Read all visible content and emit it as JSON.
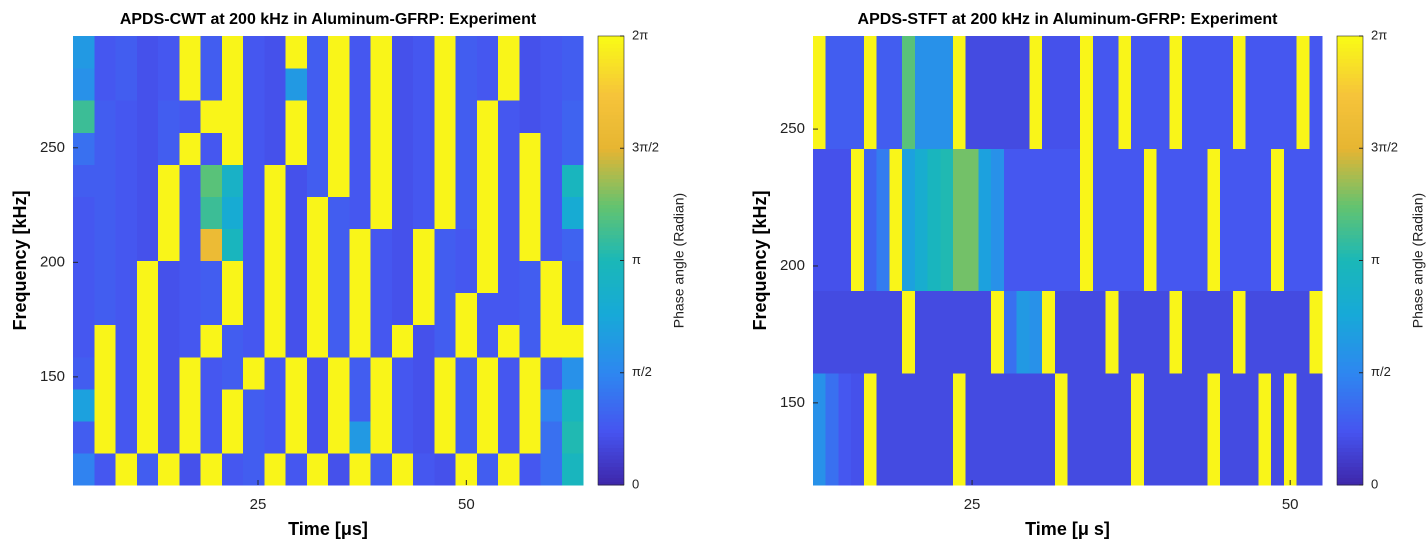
{
  "chart_data": [
    {
      "type": "heatmap",
      "title": "APDS-CWT at 200 kHz in Aluminum-GFRP: Experiment",
      "xlabel": "Time [μs]",
      "ylabel": "Frequency [kHz]",
      "xlim": [
        2.8,
        64.0
      ],
      "ylim": [
        102.8,
        298.8
      ],
      "xticks": [
        25,
        50
      ],
      "yticks": [
        150,
        200,
        250
      ],
      "xbins": [
        2.8,
        5.35,
        7.9,
        10.45,
        13,
        15.55,
        18.1,
        20.65,
        23.2,
        25.75,
        28.3,
        30.85,
        33.4,
        35.95,
        38.5,
        41.05,
        43.6,
        46.15,
        48.7,
        51.25,
        53.8,
        56.35,
        58.9,
        61.45,
        64.0
      ],
      "ybins": [
        102.8,
        116.8,
        130.8,
        144.8,
        158.8,
        172.8,
        186.8,
        200.8,
        214.8,
        228.8,
        242.8,
        256.8,
        270.8,
        284.8,
        298.8
      ],
      "z": [
        [
          1.5,
          0.8,
          6.2,
          0.9,
          6.2,
          0.7,
          6.2,
          0.8,
          0.9,
          6.2,
          0.8,
          6.2,
          0.7,
          6.2,
          0.9,
          6.2,
          0.8,
          0.7,
          6.2,
          0.9,
          6.2,
          0.8,
          1.2,
          3.0
        ],
        [
          0.9,
          6.2,
          0.8,
          6.2,
          0.7,
          6.2,
          0.8,
          6.2,
          0.9,
          0.8,
          6.2,
          0.7,
          6.2,
          2.0,
          6.2,
          0.8,
          0.7,
          6.2,
          0.9,
          6.2,
          0.8,
          6.2,
          1.2,
          3.2
        ],
        [
          2.2,
          6.2,
          0.8,
          6.2,
          0.7,
          6.2,
          0.8,
          6.2,
          0.9,
          0.8,
          6.2,
          0.7,
          6.2,
          0.9,
          6.2,
          0.8,
          0.7,
          6.2,
          0.9,
          6.2,
          0.8,
          6.2,
          1.5,
          3.0
        ],
        [
          0.9,
          6.2,
          0.8,
          6.2,
          0.7,
          6.2,
          0.8,
          0.9,
          6.2,
          0.8,
          6.2,
          0.7,
          6.2,
          0.9,
          6.2,
          0.8,
          0.7,
          6.2,
          0.9,
          6.2,
          0.8,
          6.2,
          0.9,
          1.8
        ],
        [
          0.8,
          6.2,
          0.8,
          6.2,
          0.7,
          0.8,
          6.2,
          0.9,
          0.8,
          6.2,
          0.7,
          6.2,
          0.9,
          6.2,
          0.8,
          6.2,
          0.7,
          0.9,
          6.2,
          0.8,
          6.2,
          0.9,
          6.2,
          6.2
        ],
        [
          0.8,
          0.9,
          0.8,
          6.2,
          0.7,
          0.8,
          0.9,
          6.2,
          0.8,
          6.2,
          0.7,
          6.2,
          0.9,
          6.2,
          0.8,
          0.7,
          6.2,
          0.9,
          6.2,
          0.8,
          0.8,
          0.9,
          6.2,
          0.9
        ],
        [
          0.8,
          0.9,
          0.8,
          6.2,
          0.7,
          0.8,
          0.9,
          6.2,
          0.8,
          6.2,
          0.7,
          6.2,
          0.9,
          6.2,
          0.8,
          0.7,
          6.2,
          0.9,
          0.8,
          6.2,
          0.8,
          0.9,
          6.2,
          0.9
        ],
        [
          0.8,
          0.9,
          0.8,
          0.7,
          6.2,
          0.8,
          5.0,
          3.0,
          0.8,
          6.2,
          0.7,
          6.2,
          0.9,
          6.2,
          0.8,
          0.7,
          6.2,
          0.9,
          0.8,
          6.2,
          0.8,
          6.2,
          0.8,
          1.0
        ],
        [
          0.8,
          0.9,
          0.8,
          0.7,
          6.2,
          0.8,
          3.5,
          2.5,
          0.8,
          6.2,
          0.7,
          6.2,
          0.9,
          0.8,
          6.2,
          0.7,
          0.8,
          6.2,
          0.9,
          6.2,
          0.8,
          6.2,
          0.8,
          2.5
        ],
        [
          0.9,
          0.9,
          0.8,
          0.7,
          6.2,
          0.8,
          3.8,
          2.8,
          0.8,
          6.2,
          0.7,
          0.9,
          6.2,
          0.8,
          6.2,
          0.7,
          0.8,
          6.2,
          0.9,
          6.2,
          0.8,
          6.2,
          0.8,
          3.0
        ],
        [
          1.2,
          0.9,
          0.8,
          0.7,
          0.9,
          6.2,
          0.8,
          6.2,
          0.8,
          0.7,
          6.2,
          0.9,
          6.2,
          0.8,
          6.2,
          0.7,
          0.8,
          6.2,
          0.9,
          6.2,
          0.8,
          6.2,
          0.8,
          1.0
        ],
        [
          3.5,
          0.9,
          0.8,
          0.7,
          0.9,
          0.8,
          6.2,
          6.2,
          0.8,
          0.7,
          6.2,
          0.9,
          6.2,
          0.8,
          6.2,
          0.7,
          0.8,
          6.2,
          0.9,
          6.2,
          0.8,
          0.7,
          0.8,
          1.0
        ],
        [
          1.8,
          0.8,
          0.9,
          0.7,
          0.8,
          6.2,
          0.9,
          6.2,
          0.8,
          0.7,
          2.0,
          0.9,
          6.2,
          0.8,
          6.2,
          0.7,
          0.8,
          6.2,
          0.9,
          0.8,
          6.2,
          0.7,
          0.8,
          0.9
        ],
        [
          2.0,
          0.8,
          0.9,
          0.7,
          0.8,
          6.2,
          0.9,
          6.2,
          0.8,
          0.7,
          6.2,
          0.9,
          6.2,
          0.8,
          6.2,
          0.7,
          0.8,
          6.2,
          0.9,
          0.8,
          6.2,
          0.7,
          0.8,
          0.9
        ]
      ],
      "colormap": "parula",
      "clim": [
        0,
        6.2832
      ],
      "colorbar_label": "Phase angle (Radian)",
      "colorbar_ticks": [
        0,
        {
          "value": 1.5708,
          "label": "π/2"
        },
        {
          "value": 3.1416,
          "label": "π"
        },
        {
          "value": 4.7124,
          "label": "3π/2"
        },
        {
          "value": 6.2832,
          "label": "2π"
        }
      ]
    },
    {
      "type": "heatmap",
      "title": "APDS-STFT at 200 kHz in Aluminum-GFRP: Experiment",
      "xlabel": "Time [μ s]",
      "ylabel": "Frequency [kHz]",
      "xlim": [
        12.5,
        52.5
      ],
      "ylim": [
        120,
        284
      ],
      "xticks": [
        25,
        50
      ],
      "yticks": [
        150,
        200,
        250
      ],
      "xbins": [
        12.5,
        13.5,
        14.5,
        15.5,
        16.5,
        17.5,
        18.5,
        19.5,
        20.5,
        21.5,
        22.5,
        23.5,
        24.5,
        25.5,
        26.5,
        27.5,
        28.5,
        29.5,
        30.5,
        31.5,
        32.5,
        33.5,
        34.5,
        35.5,
        36.5,
        37.5,
        38.5,
        39.5,
        40.5,
        41.5,
        42.5,
        43.5,
        44.5,
        45.5,
        46.5,
        47.5,
        48.5,
        49.5,
        50.5,
        51.5,
        52.5
      ],
      "ybins": [
        120,
        161,
        191,
        243,
        284
      ],
      "z": [
        [
          1.8,
          1.2,
          0.8,
          0.7,
          6.2,
          0.6,
          0.6,
          0.6,
          0.6,
          0.6,
          0.6,
          6.2,
          0.6,
          0.6,
          0.6,
          0.6,
          0.6,
          0.6,
          0.6,
          6.2,
          0.6,
          0.6,
          0.6,
          0.6,
          0.6,
          6.2,
          0.6,
          0.6,
          0.6,
          0.6,
          0.6,
          6.2,
          0.6,
          0.6,
          0.6,
          6.2,
          0.6,
          6.2,
          0.6,
          0.6
        ],
        [
          0.6,
          0.6,
          0.6,
          0.6,
          0.6,
          0.6,
          0.6,
          6.2,
          0.6,
          0.6,
          0.6,
          0.6,
          0.6,
          0.6,
          6.2,
          1.2,
          2.0,
          1.8,
          6.2,
          0.6,
          0.6,
          0.6,
          0.6,
          6.2,
          0.6,
          0.6,
          0.6,
          0.6,
          6.2,
          0.6,
          0.6,
          0.6,
          0.6,
          6.2,
          0.6,
          0.6,
          0.6,
          0.6,
          0.6,
          6.2
        ],
        [
          0.7,
          0.7,
          0.7,
          6.2,
          1.0,
          1.4,
          6.2,
          2.2,
          2.6,
          3.0,
          3.2,
          4.0,
          4.0,
          2.2,
          1.8,
          0.8,
          0.8,
          0.8,
          0.8,
          0.8,
          0.8,
          6.2,
          0.8,
          0.8,
          0.8,
          0.8,
          6.2,
          0.8,
          0.8,
          0.8,
          0.8,
          6.2,
          0.8,
          0.8,
          0.8,
          0.8,
          6.2,
          0.8,
          0.8,
          0.8
        ],
        [
          6.2,
          0.9,
          0.9,
          0.9,
          6.2,
          0.9,
          0.9,
          3.8,
          1.8,
          1.8,
          1.8,
          6.2,
          0.6,
          0.6,
          0.6,
          0.6,
          0.6,
          6.2,
          0.7,
          0.7,
          0.7,
          6.2,
          0.8,
          0.8,
          6.2,
          0.8,
          0.8,
          0.8,
          6.2,
          0.8,
          0.8,
          0.8,
          0.8,
          6.2,
          0.8,
          0.8,
          0.8,
          0.8,
          6.2,
          0.8
        ]
      ],
      "colormap": "parula",
      "clim": [
        0,
        6.2832
      ],
      "colorbar_label": "Phase angle (Radian)",
      "colorbar_ticks": [
        0,
        {
          "value": 1.5708,
          "label": "π/2"
        },
        {
          "value": 3.1416,
          "label": "π"
        },
        {
          "value": 4.7124,
          "label": "3π/2"
        },
        {
          "value": 6.2832,
          "label": "2π"
        }
      ]
    }
  ]
}
